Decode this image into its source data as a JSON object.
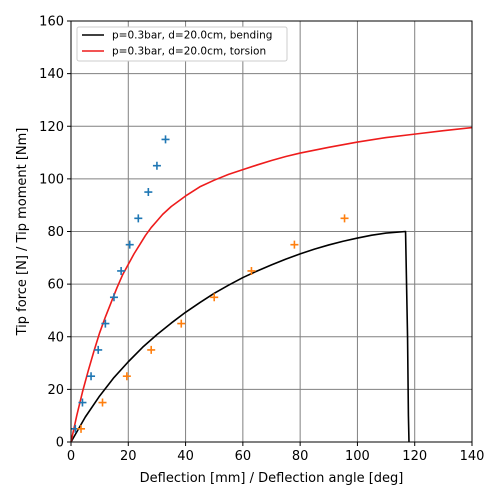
{
  "chart_data": {
    "type": "line",
    "xlabel": "Deflection [mm] / Deflection angle [deg]",
    "ylabel": "Tip force [N] / Tip moment [Nm]",
    "xlim": [
      0,
      140
    ],
    "ylim": [
      0,
      160
    ],
    "xticks": [
      0,
      20,
      40,
      60,
      80,
      100,
      120,
      140
    ],
    "yticks": [
      0,
      20,
      40,
      60,
      80,
      100,
      120,
      140,
      160
    ],
    "grid": true,
    "legend_position": "top-left",
    "series": [
      {
        "name": "p=0.3bar, d=20.0cm, bending",
        "kind": "line",
        "color": "#000000",
        "points": [
          [
            0,
            0
          ],
          [
            5,
            9.5
          ],
          [
            10,
            17.5
          ],
          [
            15,
            24.5
          ],
          [
            20,
            30.5
          ],
          [
            25,
            36
          ],
          [
            30,
            40.8
          ],
          [
            35,
            45.2
          ],
          [
            40,
            49.3
          ],
          [
            45,
            53
          ],
          [
            50,
            56.5
          ],
          [
            55,
            59.6
          ],
          [
            60,
            62.5
          ],
          [
            65,
            65
          ],
          [
            70,
            67.3
          ],
          [
            75,
            69.5
          ],
          [
            80,
            71.5
          ],
          [
            85,
            73.3
          ],
          [
            90,
            74.9
          ],
          [
            95,
            76.3
          ],
          [
            100,
            77.5
          ],
          [
            105,
            78.6
          ],
          [
            110,
            79.4
          ],
          [
            116.8,
            80
          ],
          [
            117.5,
            40
          ],
          [
            117.8,
            10
          ],
          [
            118,
            0
          ]
        ]
      },
      {
        "name": "p=0.3bar, d=20.0cm, torsion",
        "kind": "line",
        "color": "#ee1c1c",
        "points": [
          [
            0,
            0
          ],
          [
            2,
            10
          ],
          [
            4,
            19
          ],
          [
            6,
            27
          ],
          [
            8,
            34.5
          ],
          [
            10,
            41.5
          ],
          [
            12,
            47.5
          ],
          [
            14,
            53
          ],
          [
            16,
            58.5
          ],
          [
            18,
            63.5
          ],
          [
            20,
            67.5
          ],
          [
            22,
            71.5
          ],
          [
            24,
            75
          ],
          [
            26,
            78.5
          ],
          [
            28,
            81.5
          ],
          [
            30,
            84
          ],
          [
            32,
            86.5
          ],
          [
            35,
            89.5
          ],
          [
            40,
            93.5
          ],
          [
            45,
            97
          ],
          [
            50,
            99.5
          ],
          [
            55,
            101.7
          ],
          [
            60,
            103.5
          ],
          [
            65,
            105.3
          ],
          [
            70,
            107
          ],
          [
            75,
            108.5
          ],
          [
            80,
            109.8
          ],
          [
            90,
            112
          ],
          [
            100,
            114
          ],
          [
            110,
            115.7
          ],
          [
            120,
            117
          ],
          [
            130,
            118.3
          ],
          [
            140,
            119.5
          ]
        ]
      },
      {
        "name": "",
        "kind": "scatter",
        "marker": "+",
        "color": "#1f77b4",
        "points": [
          [
            1.5,
            5
          ],
          [
            4,
            15
          ],
          [
            7,
            25
          ],
          [
            9.5,
            35
          ],
          [
            12,
            45
          ],
          [
            15,
            55
          ],
          [
            17.5,
            65
          ],
          [
            20.5,
            75
          ],
          [
            23.5,
            85
          ],
          [
            27,
            95
          ],
          [
            30,
            105
          ],
          [
            33,
            115
          ]
        ]
      },
      {
        "name": "",
        "kind": "scatter",
        "marker": "+",
        "color": "#ff7f0e",
        "points": [
          [
            3.5,
            5
          ],
          [
            11,
            15
          ],
          [
            19.5,
            25
          ],
          [
            28,
            35
          ],
          [
            38.5,
            45
          ],
          [
            50,
            55
          ],
          [
            63,
            65
          ],
          [
            78,
            75
          ],
          [
            95.5,
            85
          ]
        ]
      }
    ]
  }
}
